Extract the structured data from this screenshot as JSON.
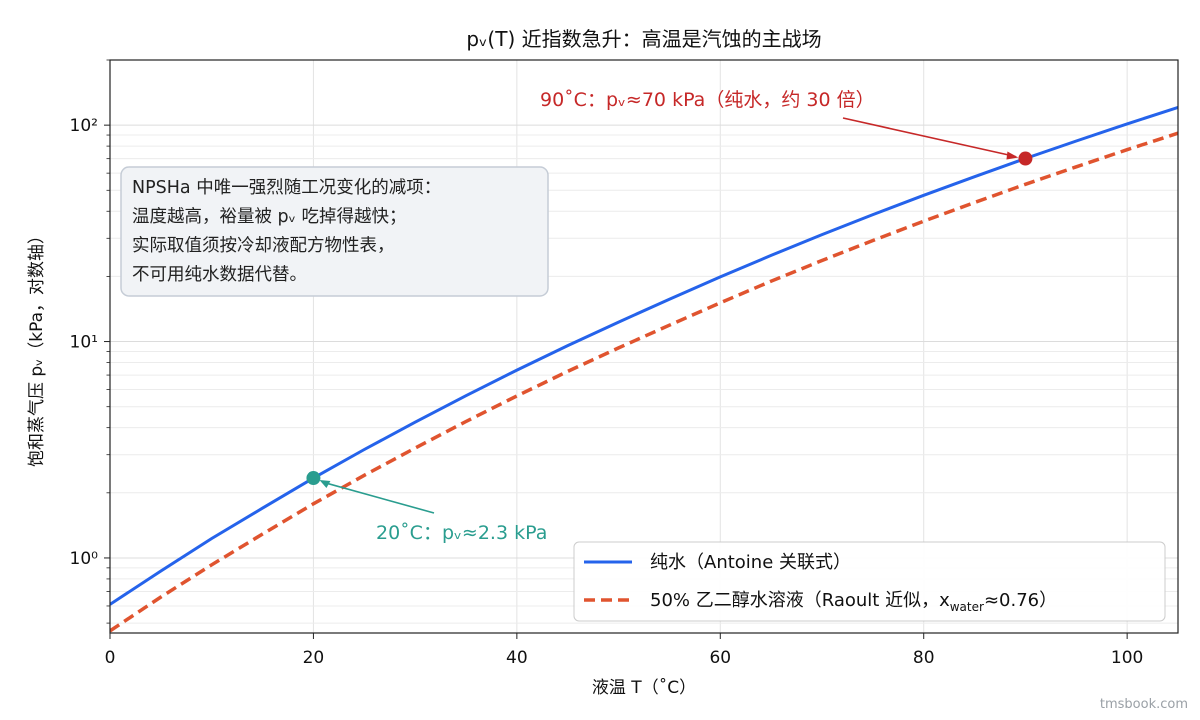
{
  "chart_data": {
    "type": "line",
    "title": "pᵥ(T) 近指数急升：高温是汽蚀的主战场",
    "xlabel": "液温 T（˚C）",
    "ylabel": "饱和蒸气压 pᵥ（kPa，对数轴）",
    "xlim": [
      0,
      105
    ],
    "ylim": [
      0.45,
      200
    ],
    "yscale": "log",
    "grid": true,
    "x_ticks": [
      0,
      20,
      40,
      60,
      80,
      100
    ],
    "x_tick_labels": [
      "0",
      "20",
      "40",
      "60",
      "80",
      "100"
    ],
    "y_ticks": [
      1,
      10,
      100
    ],
    "y_tick_labels": [
      "10⁰",
      "10¹",
      "10²"
    ],
    "legend_position": "bottom-right",
    "series": [
      {
        "name": "纯水（Antoine 关联式）",
        "color": "#2563eb",
        "style": "solid",
        "x": [
          0,
          5,
          10,
          15,
          20,
          25,
          30,
          35,
          40,
          45,
          50,
          55,
          60,
          65,
          70,
          75,
          80,
          85,
          90,
          95,
          100,
          105
        ],
        "y": [
          0.61,
          0.87,
          1.23,
          1.7,
          2.34,
          3.17,
          4.24,
          5.62,
          7.38,
          9.58,
          12.3,
          15.7,
          19.9,
          25.0,
          31.2,
          38.6,
          47.4,
          57.8,
          70.1,
          84.5,
          101.3,
          120.8
        ]
      },
      {
        "name": "50% 乙二醇水溶液（Raoult 近似，x",
        "name_sub": "water",
        "name_tail": "≈0.76）",
        "color": "#e0542f",
        "style": "dashed",
        "x": [
          0,
          5,
          10,
          15,
          20,
          25,
          30,
          35,
          40,
          45,
          50,
          55,
          60,
          65,
          70,
          75,
          80,
          85,
          90,
          95,
          100,
          105
        ],
        "y": [
          0.46,
          0.66,
          0.93,
          1.29,
          1.78,
          2.41,
          3.22,
          4.27,
          5.61,
          7.28,
          9.35,
          11.9,
          15.1,
          19.0,
          23.7,
          29.3,
          36.0,
          43.9,
          53.3,
          64.2,
          77.0,
          91.8
        ]
      }
    ],
    "points": [
      {
        "x": 20,
        "y": 2.34,
        "color": "#2a9d8f",
        "label": "20˚C：pᵥ≈2.3 kPa"
      },
      {
        "x": 90,
        "y": 70.1,
        "color": "#c62828",
        "label": "90˚C：pᵥ≈70 kPa（纯水，约 30 倍）"
      }
    ],
    "note_box": {
      "lines": [
        "NPSHa 中唯一强烈随工况变化的减项：",
        "温度越高，裕量被 pᵥ 吃掉得越快；",
        "实际取值须按冷却液配方物性表，",
        "不可用纯水数据代替。"
      ]
    }
  },
  "watermark": "tmsbook.com"
}
